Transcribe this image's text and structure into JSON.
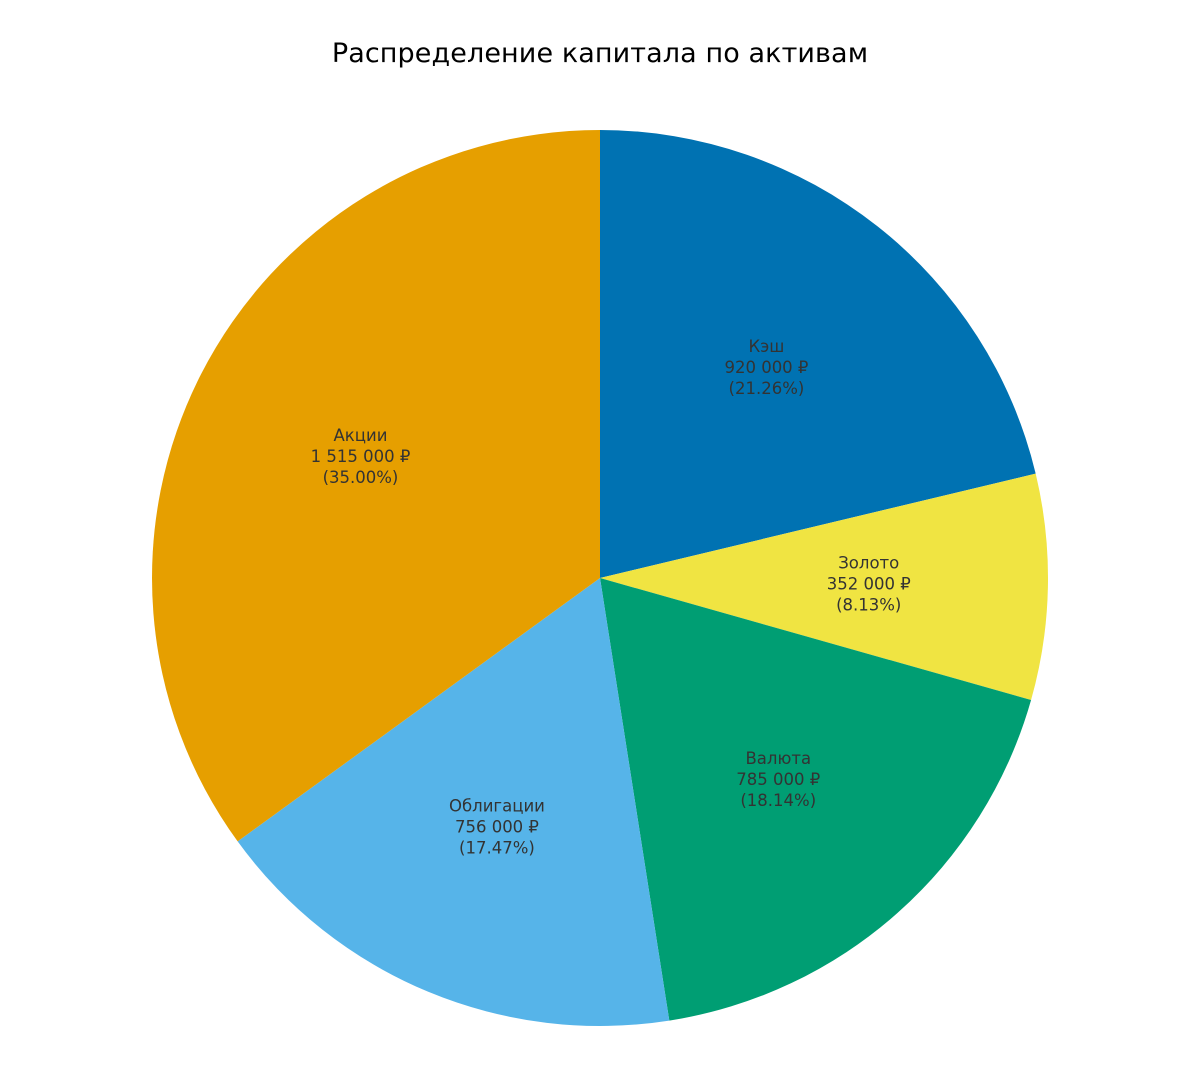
{
  "chart_data": {
    "type": "pie",
    "title": "Распределение капитала по активам",
    "start_angle_deg": 90,
    "direction": "clockwise",
    "slices": [
      {
        "name": "Кэш",
        "value": 920000,
        "value_label": "920 000 ₽",
        "percent_label": "(21.26%)",
        "color": "#0072B2"
      },
      {
        "name": "Золото",
        "value": 352000,
        "value_label": "352 000 ₽",
        "percent_label": "(8.13%)",
        "color": "#F0E442"
      },
      {
        "name": "Валюта",
        "value": 785000,
        "value_label": "785 000 ₽",
        "percent_label": "(18.14%)",
        "color": "#009E73"
      },
      {
        "name": "Облигации",
        "value": 756000,
        "value_label": "756 000 ₽",
        "percent_label": "(17.47%)",
        "color": "#56B4E9"
      },
      {
        "name": "Акции",
        "value": 1515000,
        "value_label": "1 515 000 ₽",
        "percent_label": "(35.00%)",
        "color": "#E69F00"
      }
    ]
  }
}
